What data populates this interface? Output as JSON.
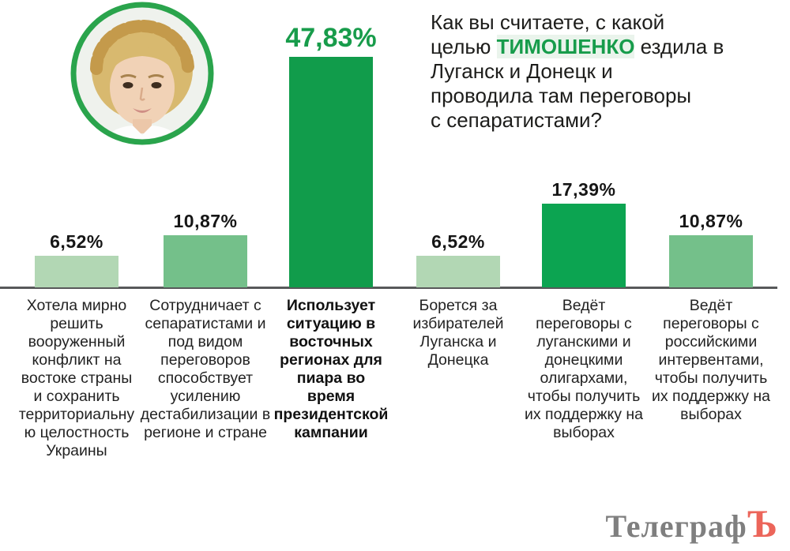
{
  "title": {
    "pre": "Как вы считаете, с какой\nцелью ",
    "highlight": "ТИМОШЕНКО",
    "post": " ездила в\nЛуганск и Донецк и\nпроводила там переговоры\nс сепаратистами?"
  },
  "portrait_icon": "tymoshenko-portrait",
  "logo": {
    "gray": "Телеграф",
    "red": "Ъ"
  },
  "colors": {
    "accent_green": "#179c4b",
    "bar_light": "#b2d7b4",
    "bar_medium": "#74c08a",
    "bar_dark": "#119c4b",
    "logo_gray": "#7f7f7f",
    "logo_red": "#ec655a",
    "baseline": "#58595a"
  },
  "chart_data": {
    "type": "bar",
    "title": "Как вы считаете, с какой целью ТИМОШЕНКО ездила в Луганск и Донецк и проводила там переговоры с сепаратистами?",
    "categories": [
      "Хотела мирно\nрешить\nвооруженный\nконфликт на\nвостоке страны\nи сохранить\nтерриториальну\nю целостность\nУкраины",
      "Сотрудничает с\nсепаратистами и\nпод видом\nпереговоров\nспособствует\nусилению\nдестабилизации в\nрегионе и стране",
      "Использует\nситуацию в\nвосточных\nрегионах для\nпиара во\nвремя\nпрезидентской\nкампании",
      "Борется за\nизбирателей\nЛуганска и\nДонецка",
      "Ведёт\nпереговоры с\nлуганскими и\nдонецкими\nолигархами,\nчтобы получить\nих поддержку на\nвыборах",
      "Ведёт\nпереговоры с\nроссийскими\nинтервентами,\nчтобы получить\nих поддержку на\nвыборах"
    ],
    "values": [
      6.52,
      10.87,
      47.83,
      6.52,
      17.39,
      10.87
    ],
    "value_labels": [
      "6,52%",
      "10,87%",
      "47,83%",
      "6,52%",
      "17,39%",
      "10,87%"
    ],
    "bar_colors": [
      "#b2d7b4",
      "#74c08a",
      "#119c4b",
      "#b2d7b4",
      "#0ca451",
      "#74c08a"
    ],
    "highlighted_index": 2,
    "xlabel": "",
    "ylabel": "",
    "ylim": [
      0,
      50
    ],
    "grid": false,
    "legend": false
  }
}
